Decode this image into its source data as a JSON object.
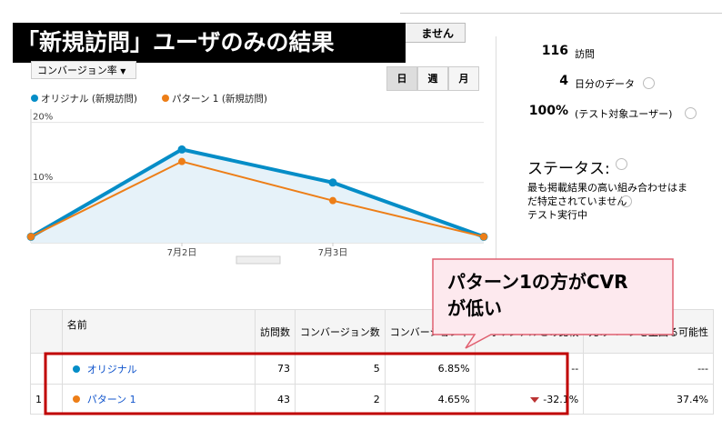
{
  "banner": {
    "title": "「新規訪問」ユーザのみの結果",
    "hidden_button": "ません"
  },
  "controls": {
    "metric": "コンバージョン率",
    "periods": [
      "日",
      "週",
      "月"
    ]
  },
  "stats": [
    {
      "value": "116",
      "label": "訪問"
    },
    {
      "value": "4",
      "label": "日分のデータ"
    },
    {
      "value": "100%",
      "label": "(テスト対象ユーザー)"
    }
  ],
  "status": {
    "title": "ステータス:",
    "message": [
      "最も掲載結果の高い組み合わせはま",
      "だ特定されていません"
    ],
    "state": "テスト実行中"
  },
  "chart_data": {
    "type": "line",
    "categories": [
      null,
      "7月2日",
      "7月3日",
      null
    ],
    "series": [
      {
        "name": "オリジナル (新規訪問)",
        "color": "#058dc7",
        "values": [
          1,
          15.5,
          10,
          1
        ]
      },
      {
        "name": "パターン 1 (新規訪問)",
        "color": "#ed7e17",
        "values": [
          1,
          13.5,
          7,
          1
        ]
      }
    ],
    "ylim": [
      0,
      21
    ],
    "yticks": [
      {
        "value": 10,
        "label": "10%"
      },
      {
        "value": 20,
        "label": "20%"
      }
    ],
    "grid": true
  },
  "callout": {
    "lines": [
      "パターン1の方がCVR",
      "が低い"
    ]
  },
  "table": {
    "header": [
      "",
      "名前",
      "訪問数",
      "コンバージョン数",
      "コンバージョン率",
      "オリジナルとの比較",
      "元のページを上回る可能性"
    ],
    "rows": [
      [
        "",
        "オリジナル",
        "73",
        "5",
        "6.85%",
        "--",
        "---"
      ],
      [
        "1",
        "パターン 1",
        "43",
        "2",
        "4.65%",
        "-32.1%",
        "37.4%"
      ]
    ]
  }
}
